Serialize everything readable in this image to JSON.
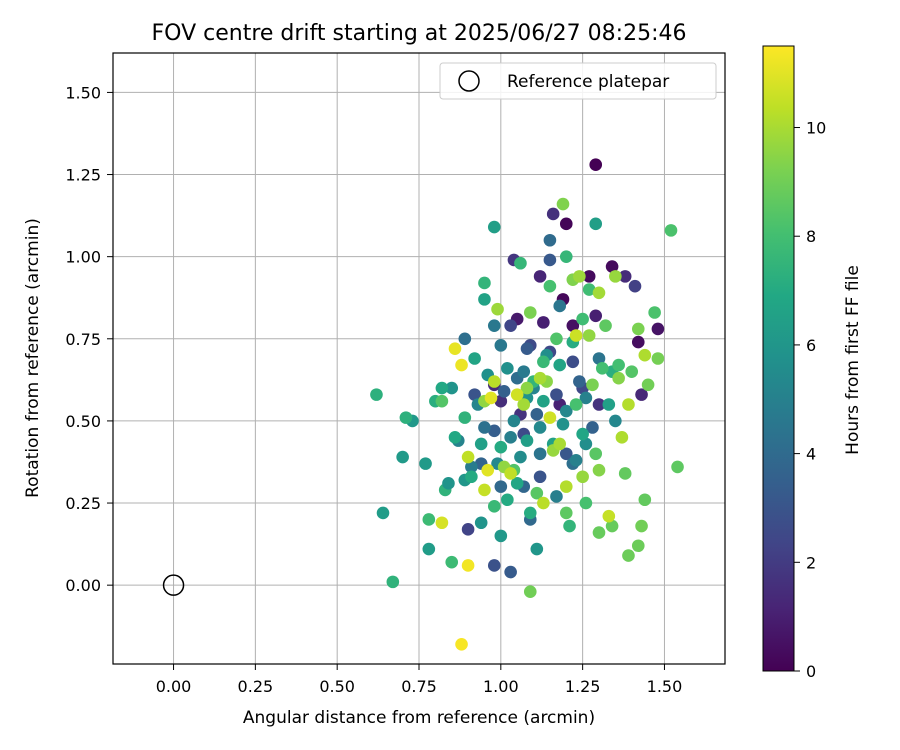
{
  "chart_data": {
    "type": "scatter",
    "title": "FOV centre drift starting at 2025/06/27 08:25:46",
    "xlabel": "Angular distance from reference (arcmin)",
    "ylabel": "Rotation from reference (arcmin)",
    "xlim": [
      -0.185,
      1.685
    ],
    "ylim": [
      -0.24,
      1.62
    ],
    "xticks": [
      0.0,
      0.25,
      0.5,
      0.75,
      1.0,
      1.25,
      1.5
    ],
    "xtick_labels": [
      "0.00",
      "0.25",
      "0.50",
      "0.75",
      "1.00",
      "1.25",
      "1.50"
    ],
    "yticks": [
      0.0,
      0.25,
      0.5,
      0.75,
      1.0,
      1.25,
      1.5
    ],
    "ytick_labels": [
      "0.00",
      "0.25",
      "0.50",
      "0.75",
      "1.00",
      "1.25",
      "1.50"
    ],
    "grid": true,
    "legend": {
      "placement": "upper right",
      "entries": [
        "Reference platepar"
      ]
    },
    "reference_point": {
      "x": 0.0,
      "y": 0.0,
      "label": "Reference platepar",
      "marker": "open-circle"
    },
    "colorbar": {
      "label": "Hours from first FF file",
      "colormap": "viridis",
      "range": [
        0,
        11.5
      ],
      "ticks": [
        0,
        2,
        4,
        6,
        8,
        10
      ],
      "tick_labels": [
        "0",
        "2",
        "4",
        "6",
        "8",
        "10"
      ]
    },
    "series": [
      {
        "points": [
          [
            1.29,
            1.28,
            0.0
          ],
          [
            1.19,
            0.87,
            0.2
          ],
          [
            1.2,
            1.1,
            0.1
          ],
          [
            1.27,
            0.94,
            0.3
          ],
          [
            1.34,
            0.97,
            0.3
          ],
          [
            1.22,
            0.79,
            0.5
          ],
          [
            1.48,
            0.78,
            0.6
          ],
          [
            1.42,
            0.74,
            0.4
          ],
          [
            1.05,
            0.81,
            0.8
          ],
          [
            1.13,
            0.8,
            1.0
          ],
          [
            1.12,
            0.94,
            1.2
          ],
          [
            1.29,
            0.82,
            1.0
          ],
          [
            1.38,
            0.94,
            1.4
          ],
          [
            1.16,
            1.13,
            1.6
          ],
          [
            1.18,
            0.55,
            1.1
          ],
          [
            1.43,
            0.58,
            1.3
          ],
          [
            1.04,
            0.99,
            1.8
          ],
          [
            1.0,
            0.56,
            1.5
          ],
          [
            0.98,
            0.61,
            1.4
          ],
          [
            1.06,
            0.52,
            1.7
          ],
          [
            1.3,
            0.55,
            1.7
          ],
          [
            1.41,
            0.91,
            2.2
          ],
          [
            1.03,
            0.79,
            2.4
          ],
          [
            0.9,
            0.17,
            2.3
          ],
          [
            1.15,
            0.71,
            2.5
          ],
          [
            1.09,
            0.73,
            2.6
          ],
          [
            1.22,
            0.68,
            2.7
          ],
          [
            1.25,
            0.6,
            2.5
          ],
          [
            0.98,
            0.06,
            2.9
          ],
          [
            1.07,
            0.46,
            2.6
          ],
          [
            1.17,
            0.58,
            2.8
          ],
          [
            0.92,
            0.58,
            3.0
          ],
          [
            1.12,
            0.33,
            3.0
          ],
          [
            1.2,
            0.4,
            3.1
          ],
          [
            1.03,
            0.04,
            3.3
          ],
          [
            1.15,
            0.99,
            3.2
          ],
          [
            1.08,
            0.72,
            3.3
          ],
          [
            0.98,
            0.47,
            3.4
          ],
          [
            1.01,
            0.59,
            3.5
          ],
          [
            1.11,
            0.52,
            3.6
          ],
          [
            1.28,
            0.48,
            3.6
          ],
          [
            0.94,
            0.37,
            3.7
          ],
          [
            1.07,
            0.3,
            3.8
          ],
          [
            1.24,
            0.62,
            3.7
          ],
          [
            1.09,
            0.2,
            3.9
          ],
          [
            1.0,
            0.3,
            3.9
          ],
          [
            1.15,
            1.05,
            4.0
          ],
          [
            1.05,
            0.63,
            4.1
          ],
          [
            0.89,
            0.75,
            4.2
          ],
          [
            1.22,
            0.37,
            4.2
          ],
          [
            0.95,
            0.48,
            4.3
          ],
          [
            1.12,
            0.4,
            4.4
          ],
          [
            1.3,
            0.69,
            4.4
          ],
          [
            1.0,
            0.73,
            4.6
          ],
          [
            0.98,
            0.79,
            4.6
          ],
          [
            1.18,
            0.85,
            4.5
          ],
          [
            1.07,
            0.65,
            4.7
          ],
          [
            0.91,
            0.36,
            4.8
          ],
          [
            1.03,
            0.45,
            4.9
          ],
          [
            1.17,
            0.27,
            4.9
          ],
          [
            1.26,
            0.57,
            5.0
          ],
          [
            1.23,
            0.38,
            5.0
          ],
          [
            0.87,
            0.44,
            5.1
          ],
          [
            1.1,
            0.6,
            5.1
          ],
          [
            1.04,
            0.5,
            5.2
          ],
          [
            0.93,
            0.55,
            5.2
          ],
          [
            1.2,
            0.53,
            5.3
          ],
          [
            1.35,
            0.5,
            5.3
          ],
          [
            1.12,
            0.48,
            5.4
          ],
          [
            0.99,
            0.37,
            5.4
          ],
          [
            1.06,
            0.39,
            5.5
          ],
          [
            1.26,
            0.43,
            5.6
          ],
          [
            1.14,
            0.7,
            5.6
          ],
          [
            0.96,
            0.64,
            5.7
          ],
          [
            1.02,
            0.66,
            5.7
          ],
          [
            1.19,
            0.49,
            5.8
          ],
          [
            1.08,
            0.57,
            5.8
          ],
          [
            0.94,
            0.19,
            5.9
          ],
          [
            1.11,
            0.11,
            6.0
          ],
          [
            0.85,
            0.6,
            5.9
          ],
          [
            0.89,
            0.32,
            6.0
          ],
          [
            1.0,
            0.15,
            6.1
          ],
          [
            0.73,
            0.5,
            6.1
          ],
          [
            0.77,
            0.37,
            6.2
          ],
          [
            0.7,
            0.39,
            6.2
          ],
          [
            0.78,
            0.11,
            6.3
          ],
          [
            0.64,
            0.22,
            6.3
          ],
          [
            0.98,
            1.09,
            6.4
          ],
          [
            1.29,
            1.1,
            6.4
          ],
          [
            1.08,
            0.44,
            6.4
          ],
          [
            1.16,
            0.43,
            6.5
          ],
          [
            1.33,
            0.55,
            6.5
          ],
          [
            1.13,
            0.56,
            6.6
          ],
          [
            0.95,
            0.87,
            6.6
          ],
          [
            0.92,
            0.69,
            6.7
          ],
          [
            1.18,
            0.67,
            6.7
          ],
          [
            1.05,
            0.31,
            6.8
          ],
          [
            1.25,
            0.46,
            6.8
          ],
          [
            0.82,
            0.6,
            6.9
          ],
          [
            0.86,
            0.45,
            6.9
          ],
          [
            0.91,
            0.33,
            7.0
          ],
          [
            1.0,
            0.42,
            7.0
          ],
          [
            1.09,
            0.22,
            7.1
          ],
          [
            1.22,
            0.74,
            7.1
          ],
          [
            1.34,
            0.65,
            7.2
          ],
          [
            0.8,
            0.56,
            7.2
          ],
          [
            0.71,
            0.51,
            7.3
          ],
          [
            0.62,
            0.58,
            7.3
          ],
          [
            0.67,
            0.01,
            7.4
          ],
          [
            0.83,
            0.29,
            7.4
          ],
          [
            0.89,
            0.51,
            7.4
          ],
          [
            0.95,
            0.92,
            7.5
          ],
          [
            1.1,
            0.62,
            7.5
          ],
          [
            1.2,
            1.0,
            7.6
          ],
          [
            1.06,
            0.98,
            7.6
          ],
          [
            1.13,
            0.68,
            7.7
          ],
          [
            0.98,
            0.24,
            7.7
          ],
          [
            0.85,
            0.07,
            7.8
          ],
          [
            0.78,
            0.2,
            7.8
          ],
          [
            1.25,
            0.81,
            7.9
          ],
          [
            1.27,
            0.9,
            7.9
          ],
          [
            1.31,
            0.66,
            8.0
          ],
          [
            1.36,
            0.67,
            8.0
          ],
          [
            1.23,
            0.55,
            8.1
          ],
          [
            1.15,
            0.91,
            8.1
          ],
          [
            1.52,
            1.08,
            8.2
          ],
          [
            1.47,
            0.83,
            8.2
          ],
          [
            1.04,
            0.35,
            8.3
          ],
          [
            1.17,
            0.75,
            8.3
          ],
          [
            1.4,
            0.65,
            8.4
          ],
          [
            0.82,
            0.56,
            8.4
          ],
          [
            1.29,
            0.4,
            8.5
          ],
          [
            1.11,
            0.28,
            8.5
          ],
          [
            1.2,
            0.22,
            8.6
          ],
          [
            1.54,
            0.36,
            8.6
          ],
          [
            1.44,
            0.26,
            8.7
          ],
          [
            1.38,
            0.34,
            8.7
          ],
          [
            1.3,
            0.16,
            8.8
          ],
          [
            1.34,
            0.18,
            8.8
          ],
          [
            1.42,
            0.12,
            8.9
          ],
          [
            1.39,
            0.09,
            8.9
          ],
          [
            1.09,
            -0.02,
            9.0
          ],
          [
            1.45,
            0.61,
            9.0
          ],
          [
            1.48,
            0.69,
            9.1
          ],
          [
            1.42,
            0.78,
            9.2
          ],
          [
            1.28,
            0.61,
            9.2
          ],
          [
            1.22,
            0.93,
            9.3
          ],
          [
            1.19,
            1.16,
            9.3
          ],
          [
            1.3,
            0.35,
            9.4
          ],
          [
            1.36,
            0.63,
            9.4
          ],
          [
            1.08,
            0.6,
            9.5
          ],
          [
            1.14,
            0.62,
            9.5
          ],
          [
            1.01,
            0.36,
            9.6
          ],
          [
            0.95,
            0.56,
            9.6
          ],
          [
            1.16,
            0.41,
            9.7
          ],
          [
            1.25,
            0.33,
            9.7
          ],
          [
            0.99,
            0.84,
            9.8
          ],
          [
            1.24,
            0.94,
            9.8
          ],
          [
            1.3,
            0.89,
            9.9
          ],
          [
            1.07,
            0.55,
            9.9
          ],
          [
            1.18,
            0.43,
            10.0
          ],
          [
            1.12,
            0.63,
            10.0
          ],
          [
            1.44,
            0.7,
            10.1
          ],
          [
            1.37,
            0.45,
            10.1
          ],
          [
            1.39,
            0.55,
            10.2
          ],
          [
            1.2,
            0.3,
            10.2
          ],
          [
            0.98,
            0.62,
            10.3
          ],
          [
            1.13,
            0.25,
            10.3
          ],
          [
            1.03,
            0.34,
            10.4
          ],
          [
            0.9,
            0.39,
            10.4
          ],
          [
            1.33,
            0.21,
            10.5
          ],
          [
            0.95,
            0.29,
            10.5
          ],
          [
            1.23,
            0.76,
            10.6
          ],
          [
            1.05,
            0.58,
            10.7
          ],
          [
            1.15,
            0.51,
            10.7
          ],
          [
            0.82,
            0.19,
            10.8
          ],
          [
            0.97,
            0.57,
            11.0
          ],
          [
            0.86,
            0.72,
            11.1
          ],
          [
            0.88,
            0.67,
            11.2
          ],
          [
            0.9,
            0.06,
            11.3
          ],
          [
            0.88,
            -0.18,
            11.4
          ],
          [
            0.96,
            0.35,
            11.0
          ],
          [
            1.27,
            0.76,
            9.6
          ],
          [
            1.09,
            0.83,
            9.2
          ],
          [
            1.32,
            0.79,
            8.6
          ],
          [
            1.35,
            0.94,
            9.7
          ],
          [
            1.43,
            0.18,
            9.0
          ],
          [
            1.26,
            0.25,
            8.1
          ],
          [
            1.21,
            0.18,
            7.5
          ],
          [
            1.02,
            0.26,
            7.0
          ],
          [
            0.94,
            0.43,
            6.5
          ],
          [
            0.84,
            0.31,
            5.9
          ]
        ]
      }
    ]
  }
}
